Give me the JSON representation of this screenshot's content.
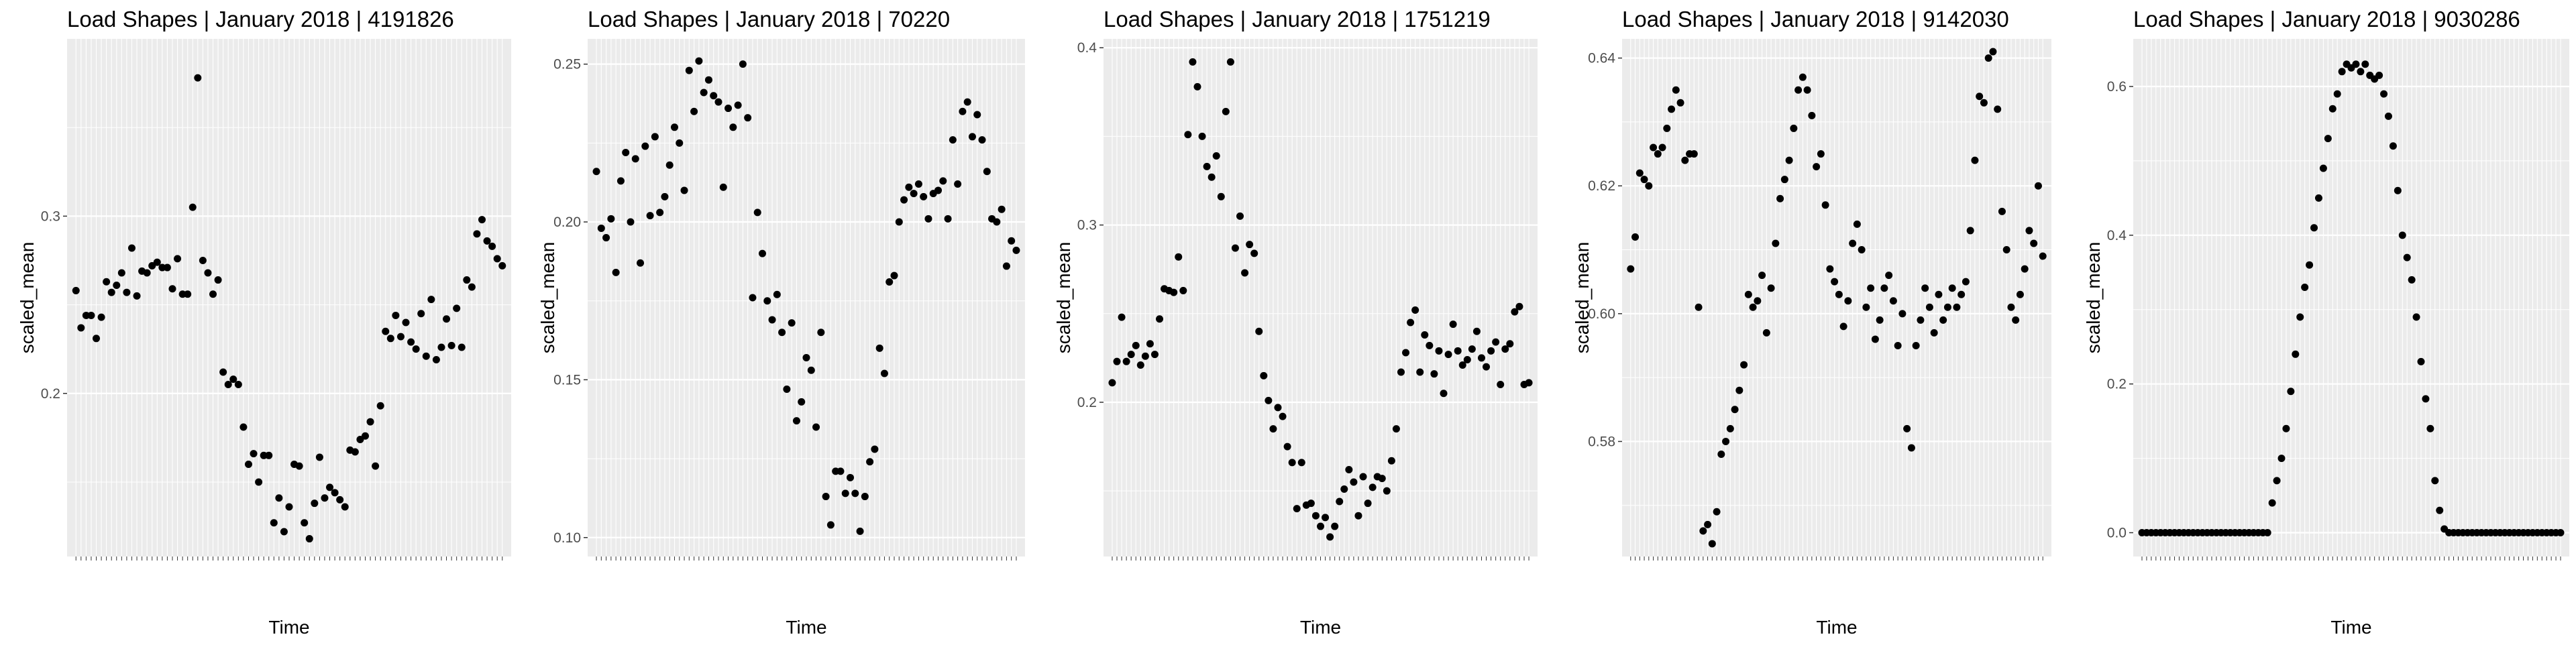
{
  "chart_data": [
    {
      "type": "scatter",
      "title": "Load Shapes | January 2018 |  4191826",
      "xlabel": "Time",
      "ylabel": "scaled_mean",
      "ylim": [
        0.108,
        0.4
      ],
      "yticks": [
        0.2,
        0.3
      ],
      "ytick_labels": [
        "0.2",
        "0.3"
      ],
      "grid": true,
      "values": [
        0.258,
        0.237,
        0.244,
        0.244,
        0.231,
        0.243,
        0.263,
        0.257,
        0.261,
        0.268,
        0.257,
        0.282,
        0.255,
        0.269,
        0.268,
        0.272,
        0.274,
        0.271,
        0.271,
        0.259,
        0.276,
        0.256,
        0.256,
        0.305,
        0.378,
        0.275,
        0.268,
        0.256,
        0.264,
        0.212,
        0.205,
        0.208,
        0.205,
        0.181,
        0.16,
        0.166,
        0.15,
        0.165,
        0.165,
        0.127,
        0.141,
        0.122,
        0.136,
        0.16,
        0.159,
        0.127,
        0.118,
        0.138,
        0.164,
        0.141,
        0.147,
        0.144,
        0.14,
        0.136,
        0.168,
        0.167,
        0.174,
        0.176,
        0.184,
        0.159,
        0.193,
        0.235,
        0.231,
        0.244,
        0.232,
        0.24,
        0.229,
        0.225,
        0.245,
        0.221,
        0.253,
        0.219,
        0.226,
        0.242,
        0.227,
        0.248,
        0.226,
        0.264,
        0.26,
        0.29,
        0.298,
        0.286,
        0.283,
        0.276,
        0.272
      ]
    },
    {
      "type": "scatter",
      "title": "Load Shapes | January 2018 |  70220",
      "xlabel": "Time",
      "ylabel": "scaled_mean",
      "ylim": [
        0.094,
        0.258
      ],
      "yticks": [
        0.1,
        0.15,
        0.2,
        0.25
      ],
      "ytick_labels": [
        "0.10",
        "0.15",
        "0.20",
        "0.25"
      ],
      "grid": true,
      "values": [
        0.216,
        0.198,
        0.195,
        0.201,
        0.184,
        0.213,
        0.222,
        0.2,
        0.22,
        0.187,
        0.224,
        0.202,
        0.227,
        0.203,
        0.208,
        0.218,
        0.23,
        0.225,
        0.21,
        0.248,
        0.235,
        0.251,
        0.241,
        0.245,
        0.24,
        0.238,
        0.211,
        0.236,
        0.23,
        0.237,
        0.25,
        0.233,
        0.176,
        0.203,
        0.19,
        0.175,
        0.169,
        0.177,
        0.165,
        0.147,
        0.168,
        0.137,
        0.143,
        0.157,
        0.153,
        0.135,
        0.165,
        0.113,
        0.104,
        0.121,
        0.121,
        0.114,
        0.119,
        0.114,
        0.102,
        0.113,
        0.124,
        0.128,
        0.16,
        0.152,
        0.181,
        0.183,
        0.2,
        0.207,
        0.211,
        0.209,
        0.212,
        0.208,
        0.201,
        0.209,
        0.21,
        0.213,
        0.201,
        0.226,
        0.212,
        0.235,
        0.238,
        0.227,
        0.234,
        0.226,
        0.216,
        0.201,
        0.2,
        0.204,
        0.186,
        0.194,
        0.191
      ]
    },
    {
      "type": "scatter",
      "title": "Load Shapes | January 2018 |  1751219",
      "xlabel": "Time",
      "ylabel": "scaled_mean",
      "ylim": [
        0.113,
        0.405
      ],
      "yticks": [
        0.2,
        0.3,
        0.4
      ],
      "ytick_labels": [
        "0.2",
        "0.3",
        "0.4"
      ],
      "grid": true,
      "values": [
        0.211,
        0.223,
        0.248,
        0.223,
        0.227,
        0.232,
        0.221,
        0.226,
        0.233,
        0.227,
        0.247,
        0.264,
        0.263,
        0.262,
        0.282,
        0.263,
        0.351,
        0.392,
        0.378,
        0.35,
        0.333,
        0.327,
        0.339,
        0.316,
        0.364,
        0.392,
        0.287,
        0.305,
        0.273,
        0.289,
        0.284,
        0.24,
        0.215,
        0.201,
        0.185,
        0.197,
        0.192,
        0.175,
        0.166,
        0.14,
        0.166,
        0.142,
        0.143,
        0.136,
        0.13,
        0.135,
        0.124,
        0.13,
        0.144,
        0.151,
        0.162,
        0.155,
        0.136,
        0.158,
        0.143,
        0.152,
        0.158,
        0.157,
        0.15,
        0.167,
        0.185,
        0.217,
        0.228,
        0.245,
        0.252,
        0.217,
        0.238,
        0.232,
        0.216,
        0.229,
        0.205,
        0.227,
        0.244,
        0.229,
        0.221,
        0.224,
        0.23,
        0.24,
        0.225,
        0.22,
        0.229,
        0.234,
        0.21,
        0.23,
        0.233,
        0.251,
        0.254,
        0.21,
        0.211
      ]
    },
    {
      "type": "scatter",
      "title": "Load Shapes | January 2018 |  9142030",
      "xlabel": "Time",
      "ylabel": "scaled_mean",
      "ylim": [
        0.562,
        0.643
      ],
      "yticks": [
        0.58,
        0.6,
        0.62,
        0.64
      ],
      "ytick_labels": [
        "0.58",
        "0.60",
        "0.62",
        "0.64"
      ],
      "grid": true,
      "values": [
        0.607,
        0.612,
        0.622,
        0.621,
        0.62,
        0.626,
        0.625,
        0.626,
        0.629,
        0.632,
        0.635,
        0.633,
        0.624,
        0.625,
        0.625,
        0.601,
        0.566,
        0.567,
        0.564,
        0.569,
        0.578,
        0.58,
        0.582,
        0.585,
        0.588,
        0.592,
        0.603,
        0.601,
        0.602,
        0.606,
        0.597,
        0.604,
        0.611,
        0.618,
        0.621,
        0.624,
        0.629,
        0.635,
        0.637,
        0.635,
        0.631,
        0.623,
        0.625,
        0.617,
        0.607,
        0.605,
        0.603,
        0.598,
        0.602,
        0.611,
        0.614,
        0.61,
        0.601,
        0.604,
        0.596,
        0.599,
        0.604,
        0.606,
        0.602,
        0.595,
        0.6,
        0.582,
        0.579,
        0.595,
        0.599,
        0.604,
        0.601,
        0.597,
        0.603,
        0.599,
        0.601,
        0.604,
        0.601,
        0.603,
        0.605,
        0.613,
        0.624,
        0.634,
        0.633,
        0.64,
        0.641,
        0.632,
        0.616,
        0.61,
        0.601,
        0.599,
        0.603,
        0.607,
        0.613,
        0.611,
        0.62,
        0.609
      ]
    },
    {
      "type": "scatter",
      "title": "Load Shapes | January 2018 |  9030286",
      "xlabel": "Time",
      "ylabel": "scaled_mean",
      "ylim": [
        -0.032,
        0.664
      ],
      "yticks": [
        0,
        0.2,
        0.4,
        0.6
      ],
      "ytick_labels": [
        "0.0",
        "0.2",
        "0.4",
        "0.6"
      ],
      "grid": true,
      "values": [
        0,
        0,
        0,
        0,
        0,
        0,
        0,
        0,
        0,
        0,
        0,
        0,
        0,
        0,
        0,
        0,
        0,
        0,
        0,
        0,
        0,
        0,
        0,
        0,
        0,
        0,
        0,
        0,
        0.04,
        0.07,
        0.1,
        0.14,
        0.19,
        0.24,
        0.29,
        0.33,
        0.36,
        0.41,
        0.45,
        0.49,
        0.53,
        0.57,
        0.59,
        0.62,
        0.63,
        0.625,
        0.63,
        0.62,
        0.63,
        0.615,
        0.61,
        0.615,
        0.59,
        0.56,
        0.52,
        0.46,
        0.4,
        0.37,
        0.34,
        0.29,
        0.23,
        0.18,
        0.14,
        0.07,
        0.03,
        0.005,
        0,
        0,
        0,
        0,
        0,
        0,
        0,
        0,
        0,
        0,
        0,
        0,
        0,
        0,
        0,
        0,
        0,
        0,
        0,
        0,
        0,
        0,
        0,
        0,
        0
      ]
    }
  ]
}
